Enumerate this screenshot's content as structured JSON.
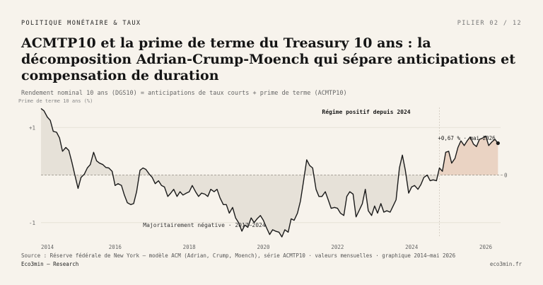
{
  "header": {
    "kicker": "POLITIQUE MONÉTAIRE & TAUX",
    "pillar": "PILIER 02 / 12",
    "title": "ACMTP10 et la prime de terme du Treasury 10 ans : la décomposition Adrian-Crump-Moench qui sépare anticipations et compensation de duration",
    "subtitle": "Rendement nominal 10 ans (DGS10) = anticipations de taux courts + prime de terme (ACMTP10)"
  },
  "footer": {
    "source": "Source : Réserve fédérale de New York — modèle ACM (Adrian, Crump, Moench), série ACMTP10 · valeurs mensuelles · graphique 2014–mai 2026",
    "brand": "Eco3min — Research",
    "site": "eco3min.fr"
  },
  "chart_data": {
    "type": "area",
    "ylabel": "Prime de terme 10 ans (%)",
    "ylim": [
      -1.3,
      1.45
    ],
    "xlim": [
      2014.0,
      2026.4
    ],
    "y_ticks": [
      {
        "value": 1,
        "label": "+1"
      },
      {
        "value": 0,
        "label": "0"
      },
      {
        "value": -1,
        "label": "-1"
      }
    ],
    "x_ticks": [
      {
        "value": 2014,
        "label": "2014"
      },
      {
        "value": 2016,
        "label": "2016"
      },
      {
        "value": 2018,
        "label": "2018"
      },
      {
        "value": 2020,
        "label": "2020"
      },
      {
        "value": 2022,
        "label": "2022"
      },
      {
        "value": 2024,
        "label": "2024"
      },
      {
        "value": 2026,
        "label": "2026"
      }
    ],
    "regime_split": 2024.75,
    "colors": {
      "line": "#1a1a1a",
      "negative_fill": "#e6e1d8",
      "positive_fill": "#ead3c3",
      "grid": "#e2ddd3",
      "zero_line": "#a09a90"
    },
    "series": [
      {
        "values": [
          [
            2014.0,
            1.4
          ],
          [
            2014.08,
            1.35
          ],
          [
            2014.17,
            1.22
          ],
          [
            2014.25,
            1.15
          ],
          [
            2014.33,
            0.92
          ],
          [
            2014.42,
            0.9
          ],
          [
            2014.5,
            0.78
          ],
          [
            2014.58,
            0.5
          ],
          [
            2014.67,
            0.58
          ],
          [
            2014.75,
            0.52
          ],
          [
            2014.83,
            0.28
          ],
          [
            2014.92,
            -0.02
          ],
          [
            2015.0,
            -0.28
          ],
          [
            2015.08,
            -0.05
          ],
          [
            2015.17,
            0.02
          ],
          [
            2015.25,
            0.15
          ],
          [
            2015.33,
            0.22
          ],
          [
            2015.42,
            0.48
          ],
          [
            2015.5,
            0.3
          ],
          [
            2015.58,
            0.25
          ],
          [
            2015.67,
            0.22
          ],
          [
            2015.75,
            0.16
          ],
          [
            2015.83,
            0.15
          ],
          [
            2015.92,
            0.08
          ],
          [
            2016.0,
            -0.22
          ],
          [
            2016.08,
            -0.18
          ],
          [
            2016.17,
            -0.22
          ],
          [
            2016.25,
            -0.42
          ],
          [
            2016.33,
            -0.58
          ],
          [
            2016.42,
            -0.62
          ],
          [
            2016.5,
            -0.6
          ],
          [
            2016.58,
            -0.35
          ],
          [
            2016.67,
            0.1
          ],
          [
            2016.75,
            0.15
          ],
          [
            2016.83,
            0.12
          ],
          [
            2016.92,
            0.02
          ],
          [
            2017.0,
            -0.05
          ],
          [
            2017.08,
            -0.18
          ],
          [
            2017.17,
            -0.12
          ],
          [
            2017.25,
            -0.22
          ],
          [
            2017.33,
            -0.25
          ],
          [
            2017.42,
            -0.45
          ],
          [
            2017.5,
            -0.38
          ],
          [
            2017.58,
            -0.3
          ],
          [
            2017.67,
            -0.45
          ],
          [
            2017.75,
            -0.35
          ],
          [
            2017.83,
            -0.42
          ],
          [
            2017.92,
            -0.38
          ],
          [
            2018.0,
            -0.35
          ],
          [
            2018.08,
            -0.22
          ],
          [
            2018.17,
            -0.35
          ],
          [
            2018.25,
            -0.45
          ],
          [
            2018.33,
            -0.38
          ],
          [
            2018.42,
            -0.4
          ],
          [
            2018.5,
            -0.45
          ],
          [
            2018.58,
            -0.3
          ],
          [
            2018.67,
            -0.35
          ],
          [
            2018.75,
            -0.3
          ],
          [
            2018.83,
            -0.48
          ],
          [
            2018.92,
            -0.62
          ],
          [
            2019.0,
            -0.62
          ],
          [
            2019.08,
            -0.8
          ],
          [
            2019.17,
            -0.68
          ],
          [
            2019.25,
            -0.9
          ],
          [
            2019.33,
            -1.0
          ],
          [
            2019.42,
            -1.18
          ],
          [
            2019.5,
            -1.05
          ],
          [
            2019.58,
            -1.1
          ],
          [
            2019.67,
            -0.9
          ],
          [
            2019.75,
            -1.0
          ],
          [
            2019.83,
            -0.92
          ],
          [
            2019.92,
            -0.85
          ],
          [
            2020.0,
            -0.95
          ],
          [
            2020.08,
            -1.1
          ],
          [
            2020.17,
            -1.25
          ],
          [
            2020.25,
            -1.15
          ],
          [
            2020.33,
            -1.18
          ],
          [
            2020.42,
            -1.2
          ],
          [
            2020.5,
            -1.3
          ],
          [
            2020.58,
            -1.15
          ],
          [
            2020.67,
            -1.2
          ],
          [
            2020.75,
            -0.92
          ],
          [
            2020.83,
            -0.95
          ],
          [
            2020.92,
            -0.8
          ],
          [
            2021.0,
            -0.55
          ],
          [
            2021.08,
            -0.15
          ],
          [
            2021.17,
            0.32
          ],
          [
            2021.25,
            0.2
          ],
          [
            2021.33,
            0.15
          ],
          [
            2021.42,
            -0.3
          ],
          [
            2021.5,
            -0.45
          ],
          [
            2021.58,
            -0.45
          ],
          [
            2021.67,
            -0.35
          ],
          [
            2021.75,
            -0.52
          ],
          [
            2021.83,
            -0.7
          ],
          [
            2021.92,
            -0.68
          ],
          [
            2022.0,
            -0.7
          ],
          [
            2022.08,
            -0.8
          ],
          [
            2022.17,
            -0.85
          ],
          [
            2022.25,
            -0.45
          ],
          [
            2022.33,
            -0.35
          ],
          [
            2022.42,
            -0.4
          ],
          [
            2022.5,
            -0.88
          ],
          [
            2022.58,
            -0.75
          ],
          [
            2022.67,
            -0.6
          ],
          [
            2022.75,
            -0.3
          ],
          [
            2022.83,
            -0.75
          ],
          [
            2022.92,
            -0.85
          ],
          [
            2023.0,
            -0.65
          ],
          [
            2023.08,
            -0.8
          ],
          [
            2023.17,
            -0.6
          ],
          [
            2023.25,
            -0.78
          ],
          [
            2023.33,
            -0.75
          ],
          [
            2023.42,
            -0.78
          ],
          [
            2023.5,
            -0.65
          ],
          [
            2023.58,
            -0.52
          ],
          [
            2023.67,
            0.15
          ],
          [
            2023.75,
            0.42
          ],
          [
            2023.83,
            0.1
          ],
          [
            2023.92,
            -0.38
          ],
          [
            2024.0,
            -0.25
          ],
          [
            2024.08,
            -0.22
          ],
          [
            2024.17,
            -0.3
          ],
          [
            2024.25,
            -0.2
          ],
          [
            2024.33,
            -0.05
          ],
          [
            2024.42,
            0.0
          ],
          [
            2024.5,
            -0.12
          ],
          [
            2024.58,
            -0.1
          ],
          [
            2024.67,
            -0.12
          ],
          [
            2024.75,
            0.15
          ],
          [
            2024.83,
            0.08
          ],
          [
            2024.92,
            0.48
          ],
          [
            2025.0,
            0.5
          ],
          [
            2025.08,
            0.25
          ],
          [
            2025.17,
            0.35
          ],
          [
            2025.25,
            0.58
          ],
          [
            2025.33,
            0.72
          ],
          [
            2025.42,
            0.62
          ],
          [
            2025.5,
            0.72
          ],
          [
            2025.58,
            0.8
          ],
          [
            2025.67,
            0.65
          ],
          [
            2025.75,
            0.6
          ],
          [
            2025.83,
            0.75
          ],
          [
            2025.92,
            0.78
          ],
          [
            2026.0,
            0.82
          ],
          [
            2026.08,
            0.62
          ],
          [
            2026.17,
            0.7
          ],
          [
            2026.25,
            0.75
          ],
          [
            2026.33,
            0.67
          ]
        ]
      }
    ],
    "annotations": {
      "positive_regime": "Régime positif depuis 2024",
      "negative_regime": "Majoritairement négative · 2017–2024",
      "last_value": "+0,67 % · mai 2026"
    }
  }
}
